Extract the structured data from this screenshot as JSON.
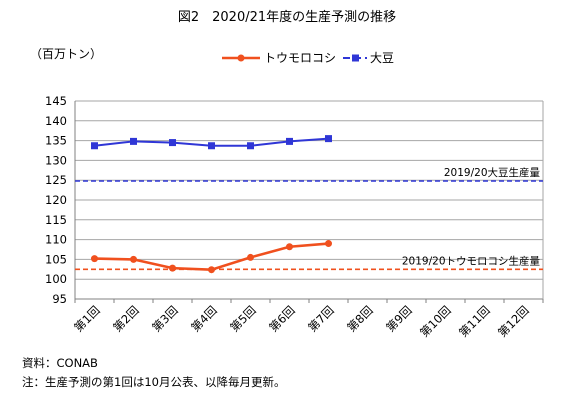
{
  "chart_data": {
    "type": "line",
    "title": "図2　2020/21年度の生産予測の推移",
    "ylabel": "（百万トン）",
    "ylim": [
      95,
      145
    ],
    "yticks": [
      95,
      100,
      105,
      110,
      115,
      120,
      125,
      130,
      135,
      140,
      145
    ],
    "grid": true,
    "legend_position": "top-right",
    "categories": [
      "第1回",
      "第2回",
      "第3回",
      "第4回",
      "第5回",
      "第6回",
      "第7回",
      "第8回",
      "第9回",
      "第10回",
      "第11回",
      "第12回"
    ],
    "series": [
      {
        "name": "トウモロコシ",
        "color": "#f0501e",
        "marker": "circle",
        "values": [
          105.2,
          105.0,
          102.8,
          102.4,
          105.5,
          108.2,
          109.0,
          null,
          null,
          null,
          null,
          null
        ]
      },
      {
        "name": "大豆",
        "color": "#2f36d6",
        "marker": "square",
        "values": [
          133.7,
          134.8,
          134.5,
          133.7,
          133.7,
          134.8,
          135.5,
          null,
          null,
          null,
          null,
          null
        ]
      }
    ],
    "reference_lines": [
      {
        "label": "2019/20大豆生産量",
        "value": 124.8,
        "color": "#2f36d6"
      },
      {
        "label": "2019/20トウモロコシ生産量",
        "value": 102.5,
        "color": "#f0501e"
      }
    ]
  },
  "notes": {
    "source": "資料：CONAB",
    "note": "注：生産予測の第1回は10月公表、以降毎月更新。"
  }
}
